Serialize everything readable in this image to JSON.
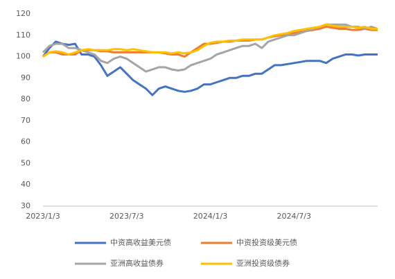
{
  "chart_data": {
    "type": "line",
    "categories": [
      "2023/1/3",
      null,
      null,
      null,
      null,
      null,
      null,
      null,
      null,
      null,
      null,
      null,
      null,
      "2023/7/3",
      null,
      null,
      null,
      null,
      null,
      null,
      null,
      null,
      null,
      null,
      null,
      null,
      "2024/1/3",
      null,
      null,
      null,
      null,
      null,
      null,
      null,
      null,
      null,
      null,
      null,
      null,
      "2024/7/3",
      null,
      null,
      null,
      null,
      null,
      null,
      null,
      null,
      null,
      null,
      null,
      null,
      null
    ],
    "series": [
      {
        "name": "中资高收益美元债",
        "color": "#4472c4",
        "values": [
          100,
          104,
          107,
          106,
          105.5,
          106,
          101,
          101,
          100,
          96,
          91,
          93,
          95,
          92,
          89,
          87,
          85,
          82,
          85,
          86,
          85,
          84,
          83.5,
          84,
          85,
          87,
          87,
          88,
          89,
          90,
          90,
          91,
          91,
          92,
          92,
          94,
          96,
          96,
          96.5,
          97,
          97.5,
          98,
          98,
          98,
          97,
          99,
          100,
          101,
          101,
          100.5,
          101,
          101,
          101
        ]
      },
      {
        "name": "中资投资级美元债",
        "color": "#ed7d31",
        "values": [
          100,
          102,
          102,
          101,
          101,
          101,
          103,
          103,
          103,
          102.5,
          102.5,
          102,
          102,
          102,
          102,
          102,
          102,
          102,
          102,
          101.5,
          101,
          101,
          100,
          102,
          104,
          106,
          106,
          106.5,
          107,
          107,
          107.5,
          107.5,
          107.5,
          108,
          108,
          109,
          109.5,
          110,
          110.5,
          111,
          111.5,
          112,
          112.5,
          113,
          114,
          113.5,
          113,
          113,
          112.5,
          112.5,
          113,
          112.5,
          112.5
        ]
      },
      {
        "name": "亚洲高收益债券",
        "color": "#a5a5a5",
        "values": [
          102,
          105,
          106,
          106,
          104,
          104,
          103,
          102,
          101,
          98,
          97,
          99,
          100,
          99,
          97,
          95,
          93,
          94,
          95,
          95,
          94,
          93.5,
          94,
          96,
          97,
          98,
          99,
          101,
          102,
          103,
          104,
          105,
          105,
          106,
          104,
          107,
          108,
          109,
          110,
          110,
          111,
          112,
          113,
          114,
          115,
          115,
          115,
          115,
          114,
          114,
          113,
          114,
          113
        ]
      },
      {
        "name": "亚洲投资级债券",
        "color": "#ffc000",
        "values": [
          100,
          102,
          102.5,
          102,
          101,
          102,
          103,
          103.5,
          103,
          103,
          103,
          103.5,
          103.5,
          103,
          103.5,
          103,
          102.5,
          102,
          102,
          102,
          101.5,
          102,
          101.5,
          102,
          103,
          105,
          106.5,
          107,
          107,
          107.5,
          107.5,
          108,
          108,
          108,
          108,
          109,
          110,
          110.5,
          111,
          112,
          112.5,
          113,
          113.5,
          114,
          115,
          114.5,
          114,
          114,
          114,
          113.5,
          114,
          113,
          113
        ]
      }
    ],
    "ylim": [
      30,
      120
    ],
    "yticks": [
      30,
      40,
      50,
      60,
      70,
      80,
      90,
      100,
      110,
      120
    ],
    "grid": false
  }
}
